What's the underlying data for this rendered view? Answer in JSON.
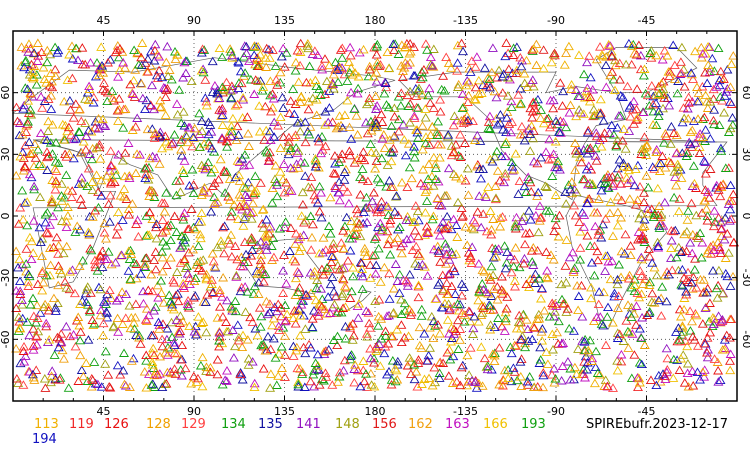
{
  "chart_data": {
    "type": "scatter",
    "projection": "cylindrical equidistant",
    "center_longitude": 180,
    "grid": "dotted",
    "marker": "triangle-open",
    "coastlines": true,
    "x_ticks_top": [
      "45",
      "90",
      "135",
      "180",
      "-135",
      "-90",
      "-45"
    ],
    "x_ticks_bottom": [
      "45",
      "90",
      "135",
      "180",
      "-135",
      "-90",
      "-45"
    ],
    "y_ticks_left": [
      "60",
      "30",
      "0",
      "-30",
      "-60"
    ],
    "y_ticks_right": [
      "60",
      "30",
      "0",
      "-30",
      "-60"
    ],
    "xlim": [
      0,
      360
    ],
    "ylim": [
      -90,
      90
    ],
    "series": [
      {
        "name": "113",
        "color": "#f0b000"
      },
      {
        "name": "119",
        "color": "#f02828"
      },
      {
        "name": "126",
        "color": "#e81010"
      },
      {
        "name": "128",
        "color": "#f0a000"
      },
      {
        "name": "129",
        "color": "#ff4040"
      },
      {
        "name": "134",
        "color": "#10a010"
      },
      {
        "name": "135",
        "color": "#1010a0"
      },
      {
        "name": "141",
        "color": "#9010c0"
      },
      {
        "name": "148",
        "color": "#a0a010"
      },
      {
        "name": "156",
        "color": "#e01818"
      },
      {
        "name": "162",
        "color": "#f0a010"
      },
      {
        "name": "163",
        "color": "#c010c0"
      },
      {
        "name": "166",
        "color": "#f0c000"
      },
      {
        "name": "193",
        "color": "#10a010"
      },
      {
        "name": "194",
        "color": "#1010c0"
      }
    ]
  },
  "data_source": "SPIREbufr.2023-12-17"
}
